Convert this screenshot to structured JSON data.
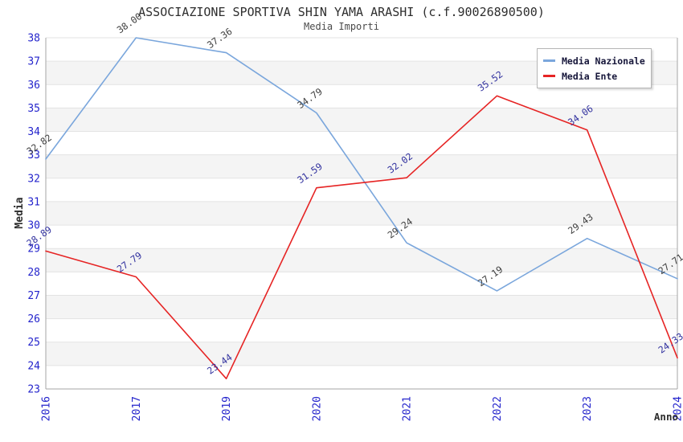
{
  "chart_data": {
    "type": "line",
    "title": "ASSOCIAZIONE SPORTIVA SHIN YAMA ARASHI (c.f.90026890500)",
    "subtitle": "Media Importi",
    "xlabel": "Anno",
    "ylabel": "Media",
    "categories": [
      "2016",
      "2017",
      "2019",
      "2020",
      "2021",
      "2022",
      "2023",
      "2024"
    ],
    "series": [
      {
        "name": "Media Nazionale",
        "color": "#7aa6dc",
        "label_color": "#3f3f3f",
        "values": [
          32.82,
          38.0,
          37.36,
          34.79,
          29.24,
          27.19,
          29.43,
          27.71
        ]
      },
      {
        "name": "Media Ente",
        "color": "#e62424",
        "label_color": "#32329f",
        "values": [
          28.89,
          27.79,
          23.44,
          31.59,
          32.02,
          35.52,
          34.06,
          24.33
        ]
      }
    ],
    "ylim": [
      23,
      38
    ],
    "y_ticks": [
      38,
      37,
      36,
      35,
      34,
      33,
      32,
      31,
      30,
      29,
      28,
      27,
      26,
      25,
      24,
      23
    ],
    "grid": "horizontal-bands-alternating",
    "legend_position": "top-right",
    "point_label_decimals": 2
  },
  "style": {
    "tick_label_color": "#2424cc",
    "grid_line_color": "#e3e3e3",
    "band_color": "#f4f4f4",
    "spine_color": "#a6a6a6",
    "axis_title_color": "#2e2e2e"
  }
}
